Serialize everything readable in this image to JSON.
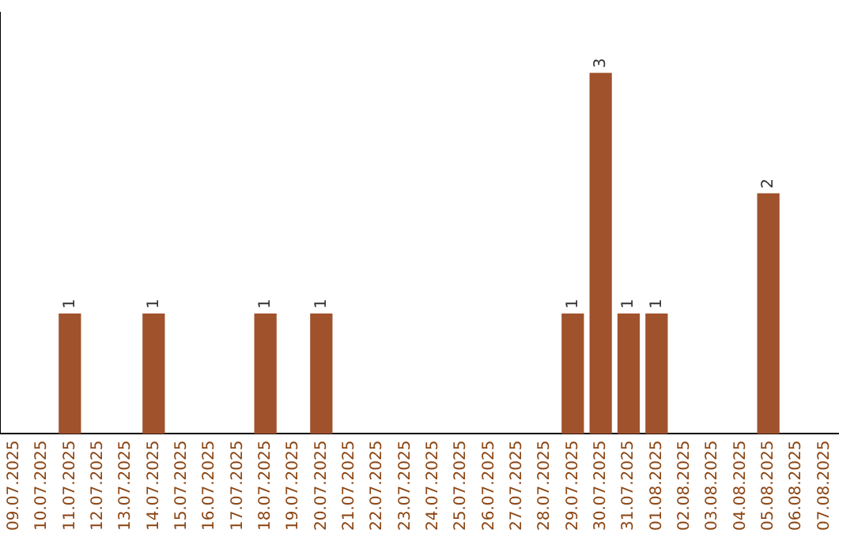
{
  "chart_data": {
    "type": "bar",
    "categories": [
      "09.07.2025",
      "10.07.2025",
      "11.07.2025",
      "12.07.2025",
      "13.07.2025",
      "14.07.2025",
      "15.07.2025",
      "16.07.2025",
      "17.07.2025",
      "18.07.2025",
      "19.07.2025",
      "20.07.2025",
      "21.07.2025",
      "22.07.2025",
      "23.07.2025",
      "24.07.2025",
      "25.07.2025",
      "26.07.2025",
      "27.07.2025",
      "28.07.2025",
      "29.07.2025",
      "30.07.2025",
      "31.07.2025",
      "01.08.2025",
      "02.08.2025",
      "03.08.2025",
      "04.08.2025",
      "05.08.2025",
      "06.08.2025",
      "07.08.2025"
    ],
    "values": [
      0,
      0,
      1,
      0,
      0,
      1,
      0,
      0,
      0,
      1,
      0,
      1,
      0,
      0,
      0,
      0,
      0,
      0,
      0,
      0,
      1,
      3,
      1,
      1,
      0,
      0,
      0,
      2,
      0,
      0
    ],
    "value_labels": [
      null,
      null,
      "1",
      null,
      null,
      "1",
      null,
      null,
      null,
      "1",
      null,
      "1",
      null,
      null,
      null,
      null,
      null,
      null,
      null,
      null,
      "1",
      "3",
      "1",
      "1",
      null,
      null,
      null,
      "2",
      null,
      null
    ],
    "color": "#a0522d",
    "grid": false,
    "legend": false
  }
}
